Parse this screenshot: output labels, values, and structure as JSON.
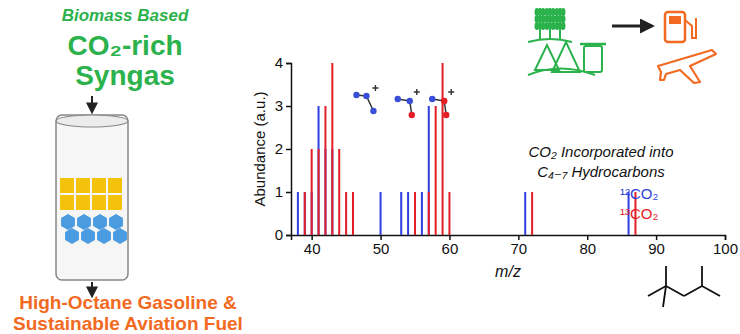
{
  "chart_data": {
    "type": "bar",
    "x_label": "m/z",
    "y_label": "Abundance (a.u.)",
    "xlim": [
      37,
      100
    ],
    "xticks": [
      40,
      50,
      60,
      70,
      80,
      90,
      100
    ],
    "ylim": [
      0,
      4
    ],
    "yticks": [
      0,
      1,
      2,
      3,
      4
    ],
    "grid": false,
    "legend": "lower right",
    "annotations": [
      "CO₂ Incorporated into",
      "C₄₋₇ Hydrocarbons"
    ],
    "series": [
      {
        "name": "¹²CO₂",
        "color": "#2f3fe0",
        "x": [
          38,
          39,
          40,
          41,
          42,
          43,
          50,
          53,
          54,
          55,
          56,
          57,
          71,
          86
        ],
        "values": [
          1,
          1,
          1,
          3,
          2,
          2,
          1,
          1,
          1,
          1,
          1,
          3,
          1,
          1
        ]
      },
      {
        "name": "¹³CO₂",
        "color": "#e41e26",
        "x": [
          39,
          40,
          41,
          42,
          43,
          44,
          45,
          46,
          55,
          57,
          58,
          59,
          60,
          72,
          87
        ],
        "values": [
          1,
          2,
          2,
          3,
          4,
          2,
          1,
          1,
          1,
          1,
          3,
          4,
          1,
          1,
          1
        ]
      }
    ]
  },
  "diagram": {
    "header": "Biomass Based",
    "feed": [
      "CO₂-rich",
      "Syngas"
    ],
    "product": [
      "High-Octane Gasoline &",
      "Sustainable Aviation Fuel"
    ]
  }
}
